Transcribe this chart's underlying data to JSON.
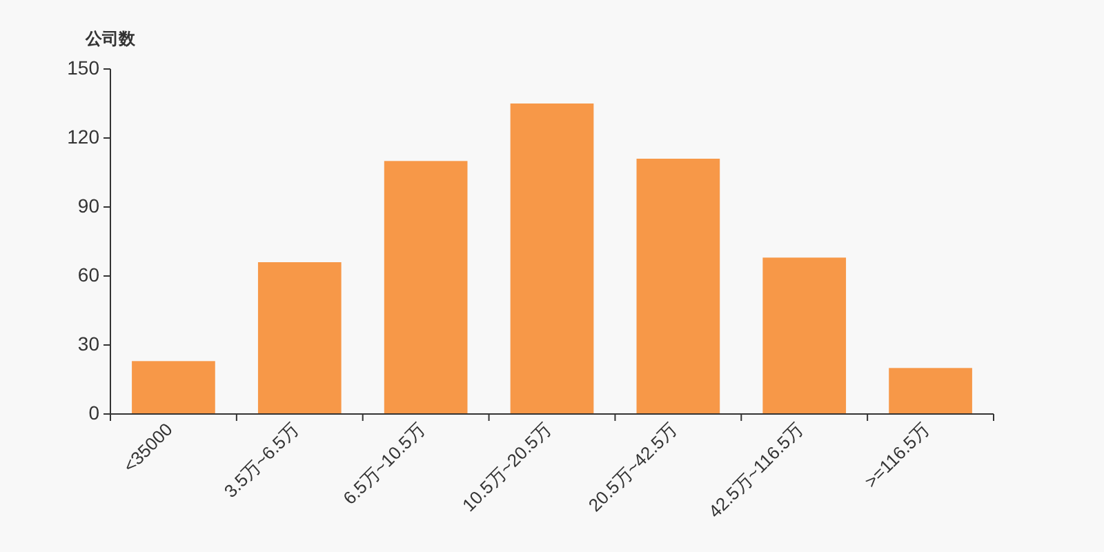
{
  "chart_data": {
    "type": "bar",
    "ylabel": "公司数",
    "categories": [
      "<35000",
      "3.5万~6.5万",
      "6.5万~10.5万",
      "10.5万~20.5万",
      "20.5万~42.5万",
      "42.5万~116.5万",
      ">=116.5万"
    ],
    "values": [
      23,
      66,
      110,
      135,
      111,
      68,
      20
    ],
    "color": "#f79848",
    "ylim": [
      0,
      150
    ],
    "yticks": [
      0,
      30,
      60,
      90,
      120,
      150
    ]
  }
}
